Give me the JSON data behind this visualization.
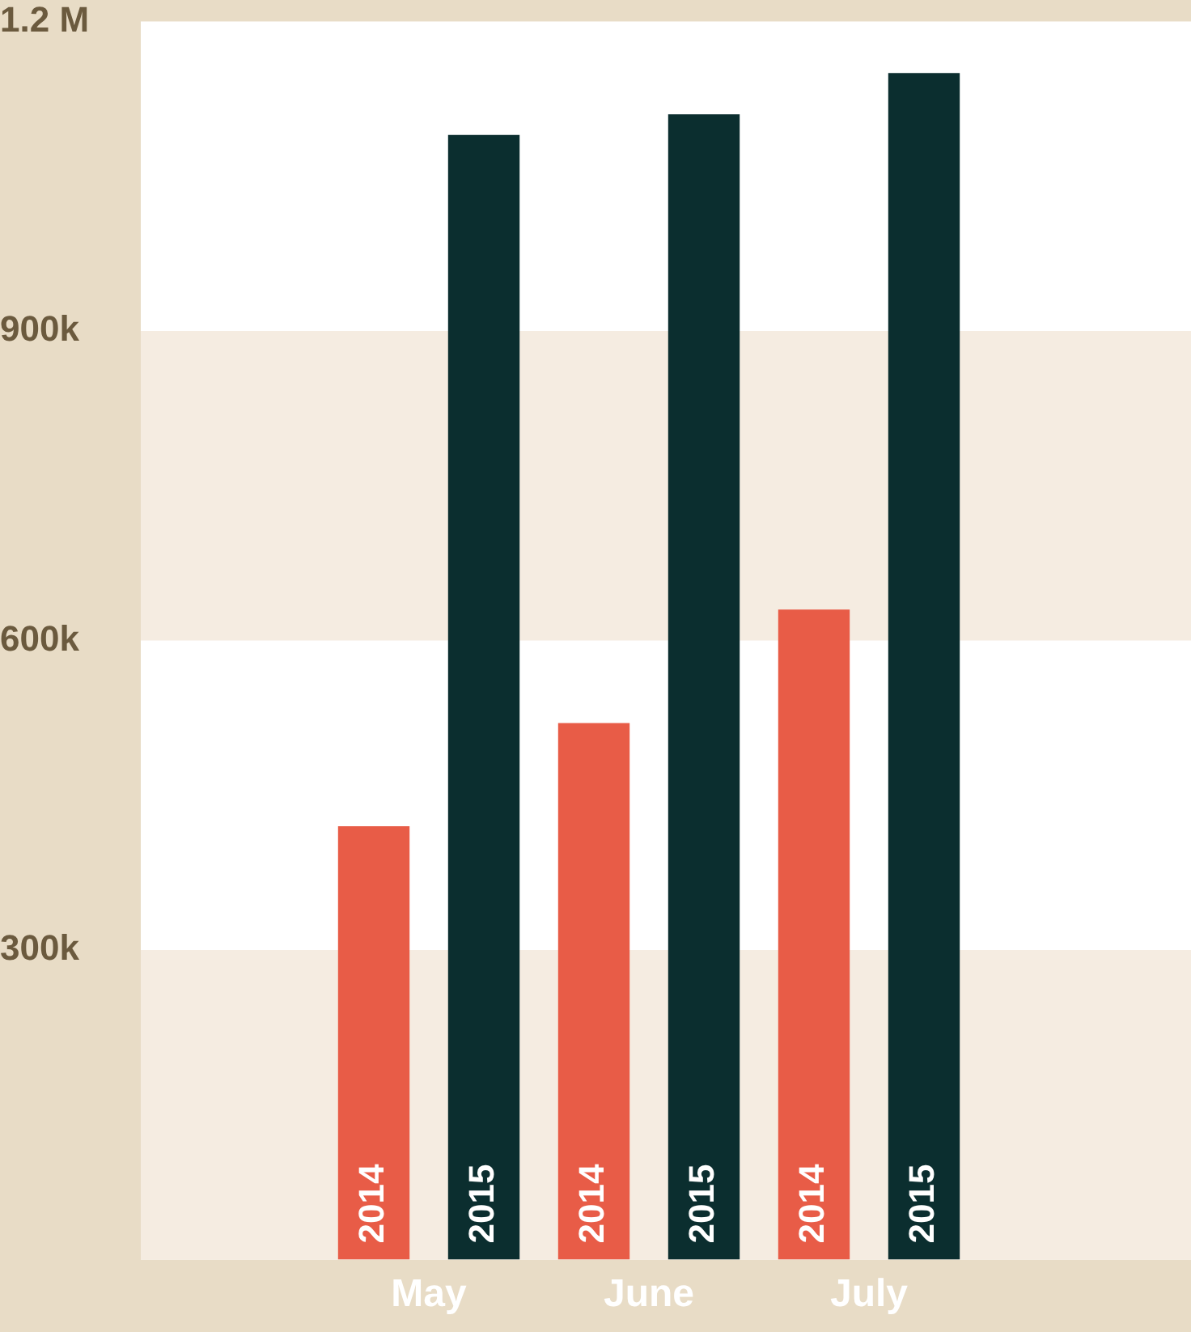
{
  "chart_data": {
    "type": "bar",
    "categories": [
      "May",
      "June",
      "July"
    ],
    "series": [
      {
        "name": "2014",
        "color": "#e85c47",
        "values": [
          420000,
          520000,
          630000
        ]
      },
      {
        "name": "2015",
        "color": "#0b2e2f",
        "values": [
          1090000,
          1110000,
          1150000
        ]
      }
    ],
    "ylim": [
      0,
      1200000
    ],
    "yticks": [
      {
        "value": 300000,
        "label": "300k"
      },
      {
        "value": 600000,
        "label": "600k"
      },
      {
        "value": 900000,
        "label": "900k"
      },
      {
        "value": 1200000,
        "label": "1.2 M"
      }
    ],
    "bands": [
      {
        "axis": "y",
        "from": 0,
        "to": 300000,
        "color": "#f5ece1"
      },
      {
        "axis": "y",
        "from": 600000,
        "to": 900000,
        "color": "#f5ece1"
      }
    ],
    "grid": false,
    "legend": false
  }
}
